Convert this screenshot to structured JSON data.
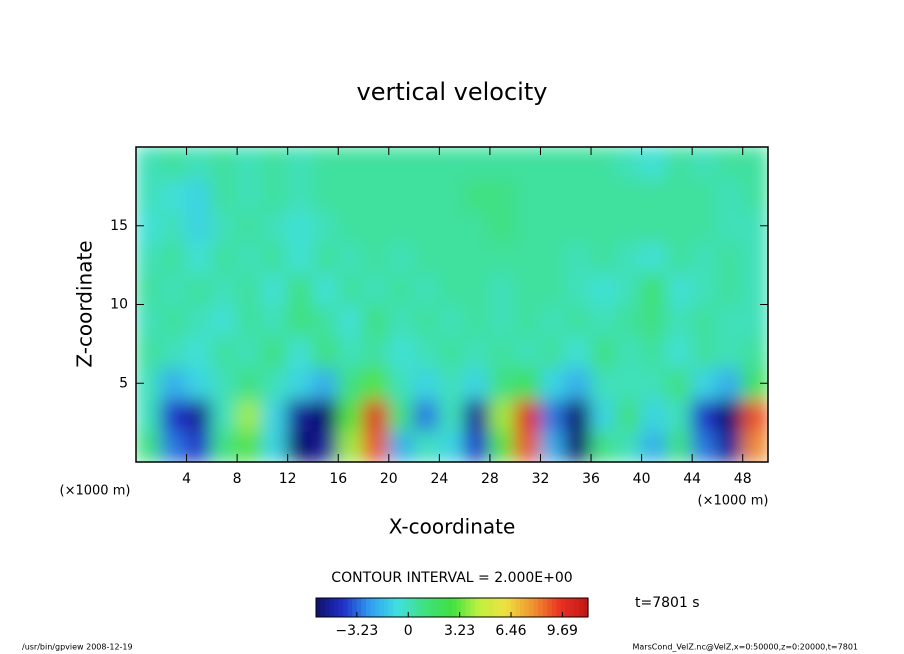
{
  "chart_data": {
    "type": "heatmap",
    "title": "vertical velocity",
    "xlabel": "X-coordinate",
    "ylabel": "Z-coordinate",
    "x_units": "(×1000 m)",
    "y_units": "(×1000 m)",
    "xlim": [
      0,
      50
    ],
    "ylim": [
      0,
      20
    ],
    "xticks": [
      4,
      8,
      12,
      16,
      20,
      24,
      28,
      32,
      36,
      40,
      44,
      48
    ],
    "yticks": [
      5,
      10,
      15
    ],
    "x": [
      1,
      3,
      5,
      7,
      9,
      11,
      13,
      15,
      17,
      19,
      21,
      23,
      25,
      27,
      29,
      31,
      33,
      35,
      37,
      39,
      41,
      43,
      45,
      47,
      49
    ],
    "y": [
      1,
      3,
      5,
      7,
      9,
      11,
      13,
      15,
      17,
      19
    ],
    "z": [
      [
        1,
        -3,
        -4,
        1,
        3,
        -1,
        -6,
        -5,
        4,
        9,
        -2,
        0,
        -1,
        -4,
        3,
        9,
        -2,
        -6,
        1,
        0,
        -2,
        1,
        -3,
        -5,
        8
      ],
      [
        0,
        -4,
        -5,
        0,
        4,
        -1,
        -5,
        -6,
        3,
        10,
        1,
        -3,
        0,
        -5,
        4,
        10,
        -3,
        -6,
        -1,
        1,
        -1,
        0,
        -4,
        -6,
        9
      ],
      [
        0,
        -2,
        -1,
        0,
        1,
        0,
        -1,
        -2,
        1,
        3,
        0,
        -1,
        0,
        -1,
        1,
        2,
        -1,
        -2,
        0,
        0,
        0,
        1,
        -1,
        -2,
        2
      ],
      [
        0.5,
        0,
        -0.5,
        0.5,
        0,
        1,
        -0.5,
        1,
        0,
        0.5,
        -0.5,
        0,
        0.5,
        0,
        0.5,
        0,
        0.5,
        -0.5,
        1,
        0,
        0.5,
        -0.5,
        0.5,
        0,
        0.5
      ],
      [
        0,
        0.5,
        0,
        -0.5,
        0.5,
        0,
        1,
        0.5,
        -0.5,
        1,
        0,
        0.5,
        0,
        0.5,
        0,
        0.5,
        0,
        0.5,
        0,
        0.5,
        1,
        0,
        0.5,
        0,
        0
      ],
      [
        0.5,
        0,
        0.5,
        0,
        0.5,
        -0.5,
        1,
        -0.5,
        0.5,
        0,
        0.5,
        0,
        0.5,
        0.5,
        0,
        0.5,
        0.5,
        0,
        -0.5,
        0,
        1.5,
        -0.5,
        0,
        0.5,
        0
      ],
      [
        0,
        0.5,
        -0.5,
        0.5,
        0,
        0.5,
        -0.5,
        0.5,
        0,
        0.5,
        0,
        0.5,
        0.5,
        0.5,
        0.5,
        0.5,
        0.5,
        0,
        0.5,
        0,
        -0.5,
        0.5,
        0,
        0.5,
        0
      ],
      [
        -0.5,
        0,
        -1,
        0,
        0.5,
        0,
        -0.5,
        0,
        0.5,
        0.5,
        0.5,
        0.5,
        0.5,
        0.5,
        1,
        0.5,
        0.5,
        0.5,
        0.5,
        0.5,
        0.5,
        0.5,
        0.5,
        0,
        0
      ],
      [
        0,
        -0.5,
        -1,
        0.5,
        0,
        0.5,
        0,
        0.5,
        0.5,
        0.5,
        0.5,
        0.5,
        0.5,
        1,
        1,
        0.5,
        0.5,
        0.5,
        0.5,
        0.5,
        0.5,
        0.5,
        0.5,
        0,
        0.5
      ],
      [
        0,
        0.5,
        0,
        0.5,
        0,
        0.5,
        0,
        0.5,
        0.5,
        0.5,
        0.5,
        0.5,
        0.5,
        0.5,
        0.5,
        0.5,
        0.5,
        0.5,
        0.5,
        0,
        -0.5,
        0.5,
        0,
        0.5,
        0.5
      ]
    ],
    "clim": [
      -5.8,
      11.3
    ],
    "colormap": [
      "#10106a",
      "#2030c8",
      "#30a0f0",
      "#40e0e0",
      "#40e080",
      "#40e040",
      "#c0f040",
      "#f0e040",
      "#f09030",
      "#e83020",
      "#c01818"
    ],
    "contour_interval": "CONTOUR INTERVAL = 2.000E+00",
    "colorbar_ticks": [
      {
        "value": -3.23,
        "label": "−3.23"
      },
      0,
      3.23,
      6.46,
      9.69
    ],
    "time_label": "t=7801 s",
    "footer_left": "/usr/bin/gpview   2008-12-19",
    "footer_right": "MarsCond_VelZ.nc@VelZ,x=0:50000,z=0:20000,t=7801"
  }
}
